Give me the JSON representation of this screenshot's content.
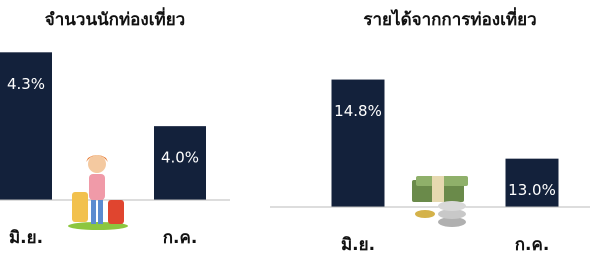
{
  "chart_data": [
    {
      "type": "bar",
      "title": "จำนวนนักท่องเที่ยว",
      "categories": [
        "มิ.ย.",
        "ก.ค."
      ],
      "values": [
        4.3,
        4.0
      ],
      "value_labels": [
        "4.3%",
        "4.0%"
      ],
      "color": "#13213b",
      "ylim": [
        3.7,
        4.35
      ]
    },
    {
      "type": "bar",
      "title": "รายได้จากการท่องเที่ยว",
      "categories": [
        "มิ.ย.",
        "ก.ค."
      ],
      "values": [
        14.8,
        13.0
      ],
      "value_labels": [
        "14.8%",
        "13.0%"
      ],
      "color": "#13213b",
      "ylim": [
        11.9,
        15.7
      ]
    }
  ]
}
